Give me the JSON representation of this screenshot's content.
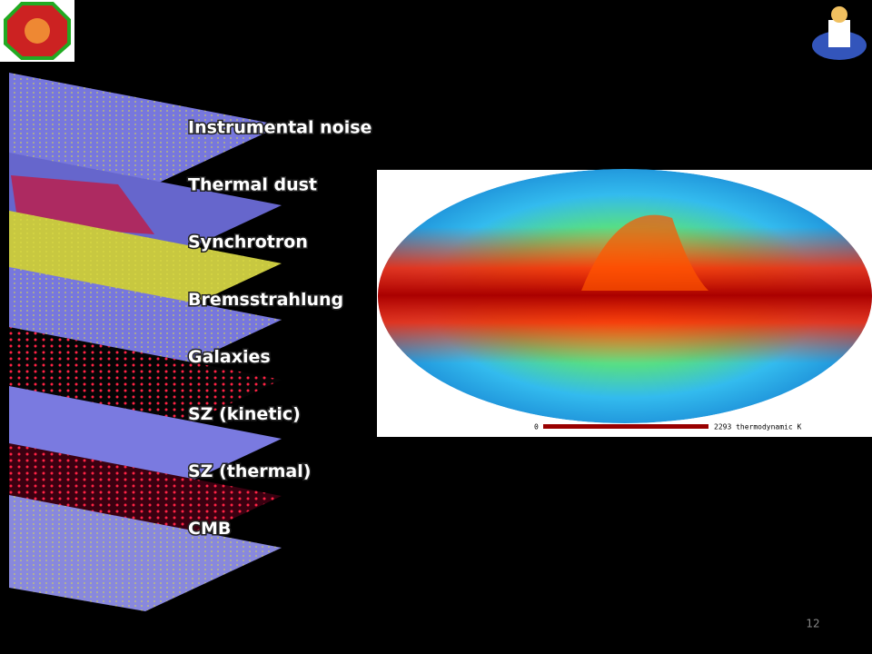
{
  "layers": [
    "Instrumental noise",
    "Thermal dust",
    "Synchrotron",
    "Bremsstrahlung",
    "Galaxies",
    "SZ (kinetic)",
    "SZ (thermal)",
    "CMB"
  ],
  "map": {
    "scale_min": 0,
    "scale_max_label": "2293 thermodynamic K"
  },
  "page_number": 12
}
